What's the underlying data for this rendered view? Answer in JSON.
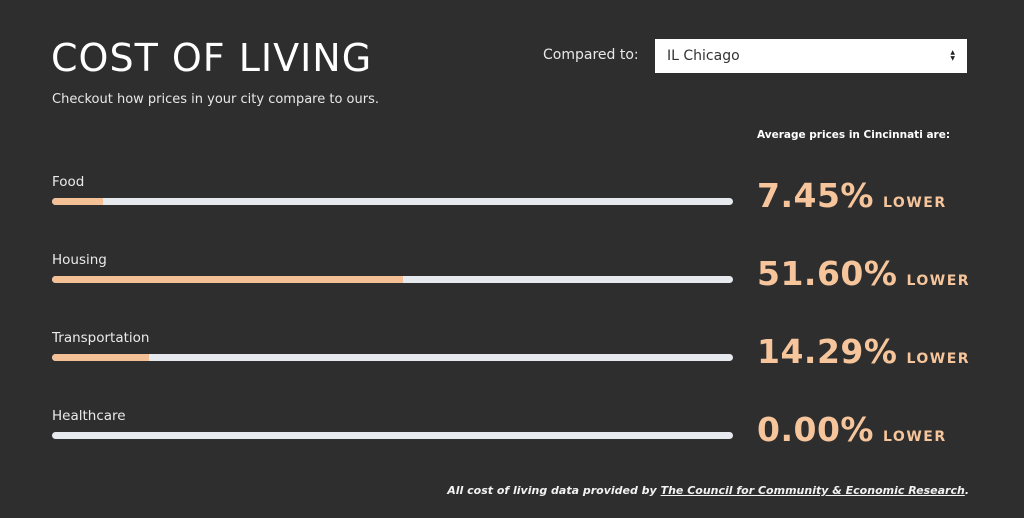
{
  "header": {
    "title": "COST OF LIVING",
    "subtitle": "Checkout how prices in your city compare to ours."
  },
  "compare": {
    "label": "Compared to:",
    "selected": "IL Chicago",
    "icon": "select-arrows-icon"
  },
  "summary_label": "Average prices in Cincinnati are:",
  "categories": [
    {
      "name": "Food",
      "value": "7.45%",
      "direction": "LOWER",
      "percent": 7.45
    },
    {
      "name": "Housing",
      "value": "51.60%",
      "direction": "LOWER",
      "percent": 51.6
    },
    {
      "name": "Transportation",
      "value": "14.29%",
      "direction": "LOWER",
      "percent": 14.29
    },
    {
      "name": "Healthcare",
      "value": "0.00%",
      "direction": "LOWER",
      "percent": 0
    }
  ],
  "footer": {
    "prefix": "All cost of living data provided by",
    "link_text": "The Council for Community & Economic Research",
    "suffix": "."
  },
  "colors": {
    "background": "#2e2e2e",
    "accent": "#f4c096",
    "track": "#e6e9ee"
  }
}
